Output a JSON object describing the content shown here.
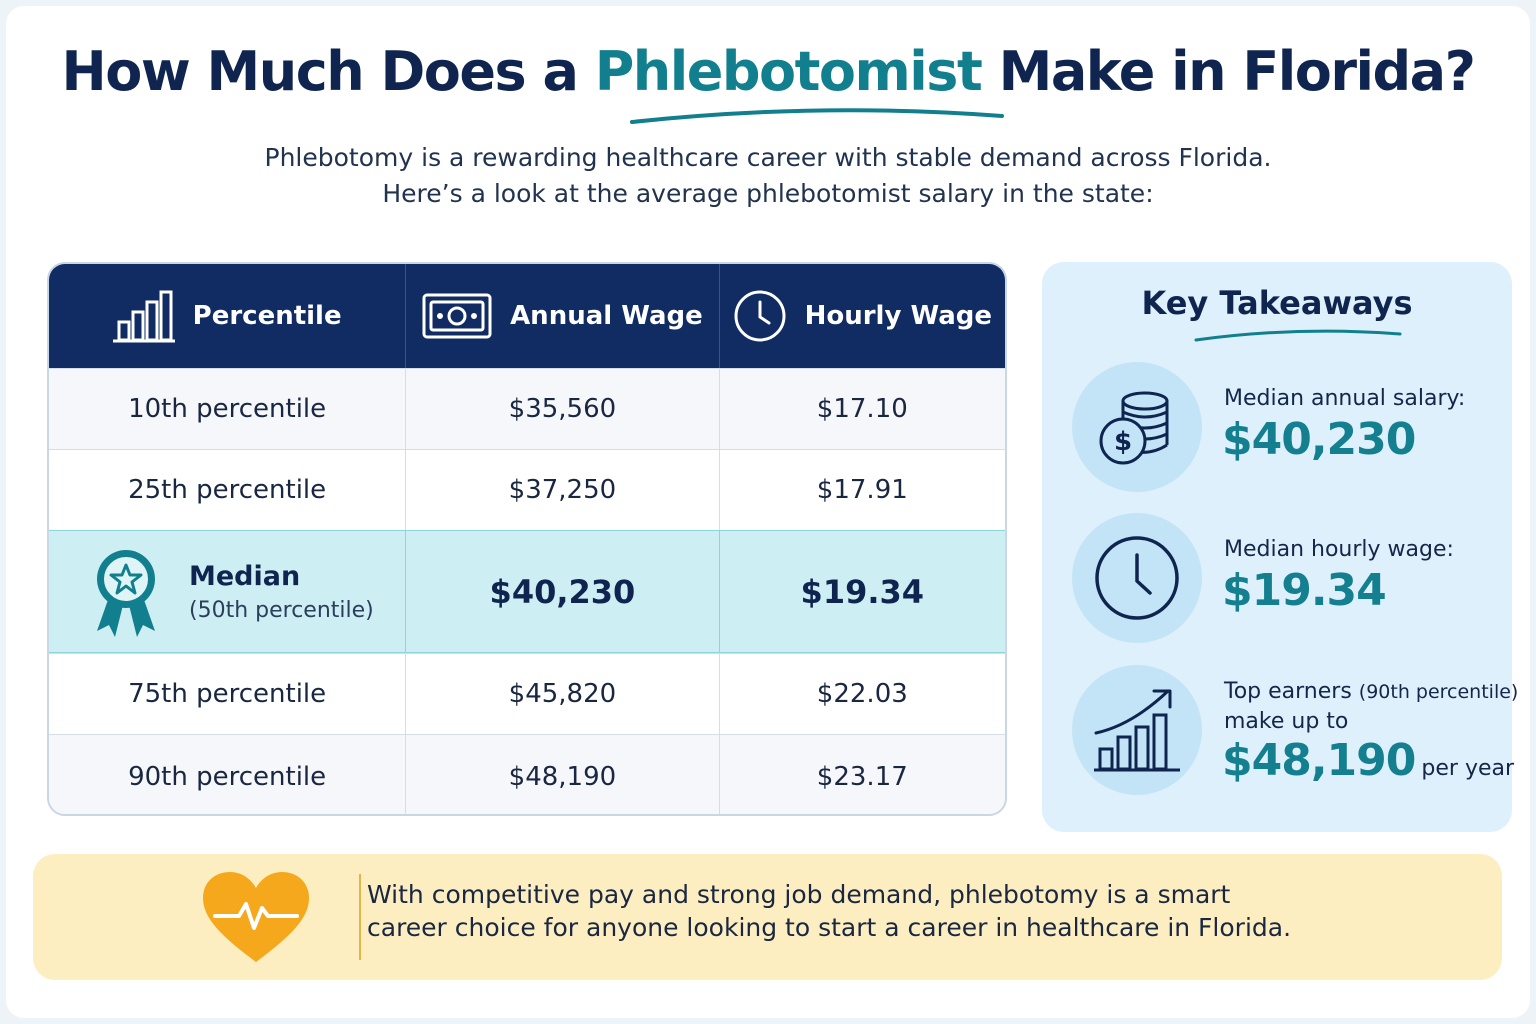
{
  "header": {
    "title_before": "How Much Does a",
    "title_highlight": "Phlebotomist",
    "title_after": "Make in Florida?",
    "subtitle_line1": "Phlebotomy is a rewarding healthcare career with stable demand across Florida.",
    "subtitle_line2": "Here’s a look at the average phlebotomist salary in the state:"
  },
  "table": {
    "columns": [
      {
        "label": "Percentile",
        "icon": "bar-chart-icon"
      },
      {
        "label": "Annual Wage",
        "icon": "money-bill-icon"
      },
      {
        "label": "Hourly Wage",
        "icon": "clock-icon"
      }
    ],
    "rows": [
      {
        "percentile": "10th percentile",
        "annual": "$35,560",
        "hourly": "$17.10"
      },
      {
        "percentile": "25th percentile",
        "annual": "$37,250",
        "hourly": "$17.91"
      },
      {
        "percentile": "Median",
        "percentile_note": "(50th percentile)",
        "annual": "$40,230",
        "hourly": "$19.34",
        "icon": "award-ribbon-icon"
      },
      {
        "percentile": "75th percentile",
        "annual": "$45,820",
        "hourly": "$22.03"
      },
      {
        "percentile": "90th percentile",
        "annual": "$48,190",
        "hourly": "$23.17"
      }
    ]
  },
  "takeaways": {
    "title": "Key Takeaways",
    "items": [
      {
        "label": "Median annual salary:",
        "value": "$40,230",
        "icon": "coins-dollar-icon"
      },
      {
        "label": "Median hourly wage:",
        "value": "$19.34",
        "icon": "clock-icon"
      },
      {
        "label_bold": "Top earners",
        "label_small": "(90th percentile)",
        "label_line2": "make up to",
        "value": "$48,190",
        "suffix": "per year",
        "icon": "growth-chart-icon"
      }
    ]
  },
  "footer": {
    "line1": "With competitive pay and strong job demand, phlebotomy is a smart",
    "line2": "career choice for anyone looking to start a career in healthcare in Florida.",
    "icon": "heartbeat-icon"
  },
  "colors": {
    "navy": "#102c63",
    "teal": "#127f8e",
    "median_row": "#cdeef3",
    "takeaway_bg": "#ddf0fb",
    "footer_bg": "#fdeec2",
    "heart": "#f5a81c"
  }
}
